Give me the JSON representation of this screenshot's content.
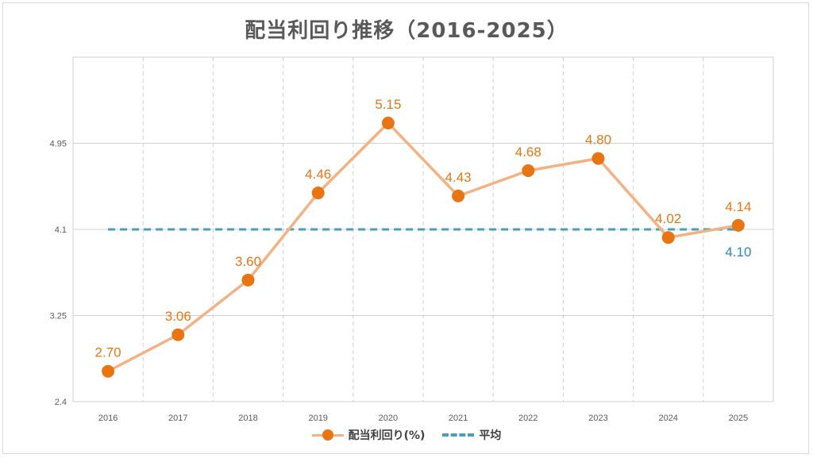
{
  "chart_data": {
    "type": "line",
    "title": "配当利回り推移（2016-2025）",
    "categories": [
      "2016",
      "2017",
      "2018",
      "2019",
      "2020",
      "2021",
      "2022",
      "2023",
      "2024",
      "2025"
    ],
    "series": [
      {
        "name": "配当利回り(%)",
        "values": [
          2.7,
          3.06,
          3.6,
          4.46,
          5.15,
          4.43,
          4.68,
          4.8,
          4.02,
          4.14
        ],
        "labels": [
          "2.70",
          "3.06",
          "3.60",
          "4.46",
          "5.15",
          "4.43",
          "4.68",
          "4.80",
          "4.02",
          "4.14"
        ],
        "color": "#e87511",
        "line_color": "#f4b183"
      },
      {
        "name": "平均",
        "value": 4.1,
        "label": "4.10",
        "color": "#4a9eba",
        "label_color": "#2e86a8"
      }
    ],
    "yticks": [
      "2.4",
      "3.25",
      "4.1",
      "4.95"
    ],
    "ylim": [
      2.4,
      5.8
    ],
    "xlabel": "",
    "ylabel": "",
    "grid": true,
    "legend_position": "bottom"
  }
}
